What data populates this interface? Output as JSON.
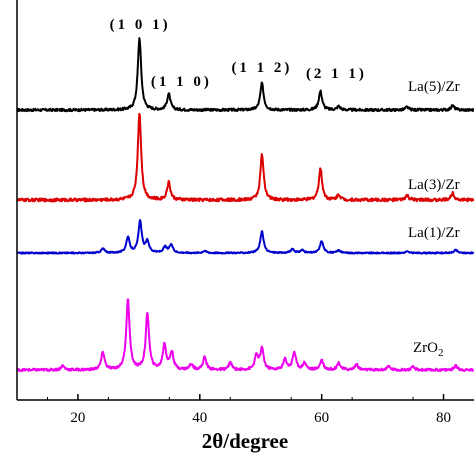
{
  "chart_data": {
    "type": "line",
    "title": "",
    "xlabel": "2θ/degree",
    "ylabel": "",
    "xlim": [
      10,
      85
    ],
    "x_ticks": [
      20,
      40,
      60,
      80
    ],
    "grid": false,
    "peak_annotations": [
      {
        "text": "(1 0 1)",
        "x": 30.2
      },
      {
        "text": "(1 1 0)",
        "x": 35.0
      },
      {
        "text": "(1 1 2)",
        "x": 50.2
      },
      {
        "text": "(2 1 1)",
        "x": 59.8
      }
    ],
    "series": [
      {
        "name": "La(5)/Zr",
        "color": "#000000",
        "peaks": [
          [
            30.1,
            1.0
          ],
          [
            34.9,
            0.22
          ],
          [
            50.2,
            0.37
          ],
          [
            59.8,
            0.26
          ],
          [
            62.8,
            0.05
          ],
          [
            74.0,
            0.04
          ],
          [
            81.5,
            0.06
          ]
        ]
      },
      {
        "name": "La(3)/Zr",
        "color": "#dd0000",
        "peaks": [
          [
            30.1,
            1.0
          ],
          [
            34.9,
            0.2
          ],
          [
            50.2,
            0.52
          ],
          [
            59.8,
            0.36
          ],
          [
            62.8,
            0.06
          ],
          [
            74.0,
            0.05
          ],
          [
            81.5,
            0.08
          ]
        ]
      },
      {
        "name": "La(1)/Zr",
        "color": "#0000cc",
        "peaks": [
          [
            24.1,
            0.12
          ],
          [
            28.2,
            0.42
          ],
          [
            30.2,
            0.85
          ],
          [
            31.4,
            0.3
          ],
          [
            34.3,
            0.16
          ],
          [
            35.3,
            0.22
          ],
          [
            40.8,
            0.06
          ],
          [
            50.2,
            0.58
          ],
          [
            55.2,
            0.1
          ],
          [
            56.8,
            0.08
          ],
          [
            60.0,
            0.32
          ],
          [
            62.8,
            0.07
          ],
          [
            74.0,
            0.04
          ],
          [
            82.0,
            0.08
          ]
        ]
      },
      {
        "name": "ZrO2",
        "color": "#ee00ee",
        "peaks": [
          [
            17.5,
            0.06
          ],
          [
            24.1,
            0.25
          ],
          [
            28.2,
            1.0
          ],
          [
            31.4,
            0.8
          ],
          [
            34.2,
            0.36
          ],
          [
            35.4,
            0.25
          ],
          [
            38.6,
            0.08
          ],
          [
            40.8,
            0.18
          ],
          [
            45.0,
            0.1
          ],
          [
            49.3,
            0.2
          ],
          [
            50.2,
            0.3
          ],
          [
            54.0,
            0.15
          ],
          [
            55.5,
            0.25
          ],
          [
            57.2,
            0.1
          ],
          [
            60.0,
            0.14
          ],
          [
            62.8,
            0.1
          ],
          [
            65.7,
            0.08
          ],
          [
            71.0,
            0.05
          ],
          [
            75.0,
            0.04
          ],
          [
            82.0,
            0.06
          ]
        ]
      }
    ]
  }
}
